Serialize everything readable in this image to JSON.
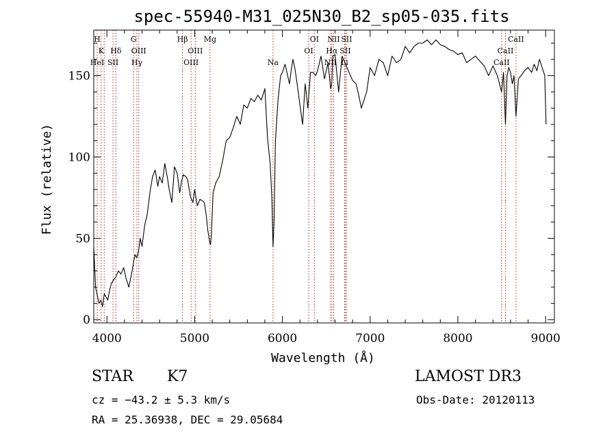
{
  "chart_data": {
    "type": "line",
    "title": "spec-55940-M31_025N30_B2_sp05-035.fits",
    "xlabel": "Wavelength (Å)",
    "ylabel": "Flux (relative)",
    "xlim": [
      3850,
      9100
    ],
    "ylim": [
      -2,
      178
    ],
    "x_ticks": [
      4000,
      5000,
      6000,
      7000,
      8000,
      9000
    ],
    "y_ticks": [
      0,
      50,
      100,
      150
    ],
    "x_minor_step": 200,
    "y_minor_step": 10,
    "series": [
      {
        "name": "flux",
        "x": [
          3850,
          3870,
          3890,
          3910,
          3930,
          3950,
          3970,
          3990,
          4010,
          4030,
          4050,
          4070,
          4100,
          4130,
          4160,
          4190,
          4220,
          4250,
          4280,
          4300,
          4320,
          4340,
          4360,
          4380,
          4400,
          4430,
          4460,
          4490,
          4520,
          4550,
          4580,
          4600,
          4630,
          4660,
          4690,
          4710,
          4740,
          4770,
          4800,
          4830,
          4850,
          4870,
          4900,
          4920,
          4950,
          4980,
          5000,
          5030,
          5060,
          5090,
          5110,
          5130,
          5150,
          5170,
          5180,
          5190,
          5210,
          5240,
          5280,
          5320,
          5360,
          5400,
          5440,
          5480,
          5520,
          5560,
          5600,
          5640,
          5680,
          5720,
          5760,
          5800,
          5830,
          5860,
          5880,
          5893,
          5905,
          5920,
          5950,
          5980,
          6000,
          6030,
          6060,
          6080,
          6100,
          6120,
          6140,
          6160,
          6180,
          6200,
          6230,
          6260,
          6290,
          6320,
          6350,
          6380,
          6400,
          6440,
          6480,
          6520,
          6550,
          6562,
          6575,
          6600,
          6640,
          6680,
          6720,
          6760,
          6800,
          6840,
          6870,
          6900,
          6930,
          6960,
          7000,
          7050,
          7100,
          7150,
          7200,
          7250,
          7300,
          7350,
          7400,
          7450,
          7500,
          7550,
          7600,
          7650,
          7700,
          7750,
          7800,
          7850,
          7900,
          7950,
          8000,
          8050,
          8100,
          8150,
          8200,
          8250,
          8300,
          8350,
          8400,
          8450,
          8498,
          8520,
          8542,
          8560,
          8580,
          8600,
          8620,
          8640,
          8662,
          8690,
          8720,
          8760,
          8800,
          8840,
          8870,
          8900,
          8930,
          8960,
          8990,
          9000,
          9005
        ],
        "values": [
          45,
          20,
          15,
          10,
          12,
          8,
          16,
          14,
          12,
          18,
          22,
          24,
          26,
          30,
          28,
          32,
          25,
          20,
          28,
          34,
          40,
          38,
          42,
          50,
          45,
          58,
          65,
          78,
          88,
          92,
          82,
          88,
          84,
          96,
          87,
          80,
          72,
          94,
          90,
          78,
          85,
          89,
          88,
          86,
          76,
          72,
          80,
          70,
          74,
          73,
          72,
          65,
          55,
          48,
          46,
          52,
          78,
          84,
          88,
          98,
          110,
          112,
          118,
          125,
          120,
          132,
          130,
          136,
          134,
          138,
          135,
          142,
          112,
          96,
          75,
          45,
          60,
          110,
          135,
          150,
          152,
          157,
          150,
          145,
          153,
          160,
          155,
          148,
          140,
          132,
          120,
          145,
          130,
          152,
          152,
          150,
          153,
          162,
          148,
          158,
          142,
          145,
          162,
          163,
          140,
          162,
          157,
          152,
          147,
          145,
          138,
          130,
          135,
          140,
          155,
          150,
          160,
          158,
          150,
          162,
          158,
          160,
          168,
          164,
          168,
          170,
          170,
          172,
          169,
          172,
          169,
          168,
          166,
          165,
          163,
          164,
          158,
          160,
          162,
          159,
          156,
          150,
          156,
          150,
          140,
          152,
          120,
          150,
          155,
          152,
          145,
          150,
          125,
          148,
          150,
          153,
          155,
          152,
          157,
          153,
          160,
          155,
          150,
          130,
          120
        ]
      }
    ],
    "spectral_lines": [
      {
        "label": "H",
        "x": 3889,
        "row": 0
      },
      {
        "label": "K",
        "x": 3934,
        "row": 1
      },
      {
        "label": "HeI",
        "x": 3889,
        "row": 2
      },
      {
        "label": "SII",
        "x": 4069,
        "row": 2
      },
      {
        "label": "Hδ",
        "x": 4102,
        "row": 1
      },
      {
        "label": "G",
        "x": 4304,
        "row": 0
      },
      {
        "label": "OIII",
        "x": 4363,
        "row": 1
      },
      {
        "label": "Hγ",
        "x": 4341,
        "row": 2
      },
      {
        "label": "Hβ",
        "x": 4861,
        "row": 0
      },
      {
        "label": "OIII",
        "x": 5007,
        "row": 1
      },
      {
        "label": "OIII",
        "x": 4959,
        "row": 2
      },
      {
        "label": "Mg",
        "x": 5175,
        "row": 0
      },
      {
        "label": "Na",
        "x": 5893,
        "row": 2
      },
      {
        "label": "OI",
        "x": 6364,
        "row": 0
      },
      {
        "label": "OI",
        "x": 6300,
        "row": 1
      },
      {
        "label": "NII",
        "x": 6584,
        "row": 0
      },
      {
        "label": "SII",
        "x": 6731,
        "row": 0
      },
      {
        "label": "NII",
        "x": 6548,
        "row": 2
      },
      {
        "label": "Hα",
        "x": 6563,
        "row": 1
      },
      {
        "label": "SII",
        "x": 6717,
        "row": 1
      },
      {
        "label": "Li",
        "x": 6708,
        "row": 2
      },
      {
        "label": "CaII",
        "x": 8662,
        "row": 0
      },
      {
        "label": "CaII",
        "x": 8542,
        "row": 1
      },
      {
        "label": "CaII",
        "x": 8498,
        "row": 2
      }
    ],
    "line_marker_x": [
      3889,
      3934,
      3969,
      4069,
      4102,
      4304,
      4341,
      4363,
      4861,
      4959,
      5007,
      5175,
      5893,
      6300,
      6364,
      6548,
      6563,
      6584,
      6708,
      6717,
      6731,
      8498,
      8542,
      8662
    ]
  },
  "info": {
    "class": "STAR",
    "subclass": "K7",
    "survey": "LAMOST DR3",
    "cz": "cz = −43.2 ± 5.3 km/s",
    "obs_date": "Obs-Date: 20120113",
    "radec": "RA =  25.36938, DEC =  29.05684"
  },
  "colors": {
    "axis": "#000000",
    "spectrum": "#000000",
    "line_marker": "#b22222",
    "background": "#ffffff"
  }
}
